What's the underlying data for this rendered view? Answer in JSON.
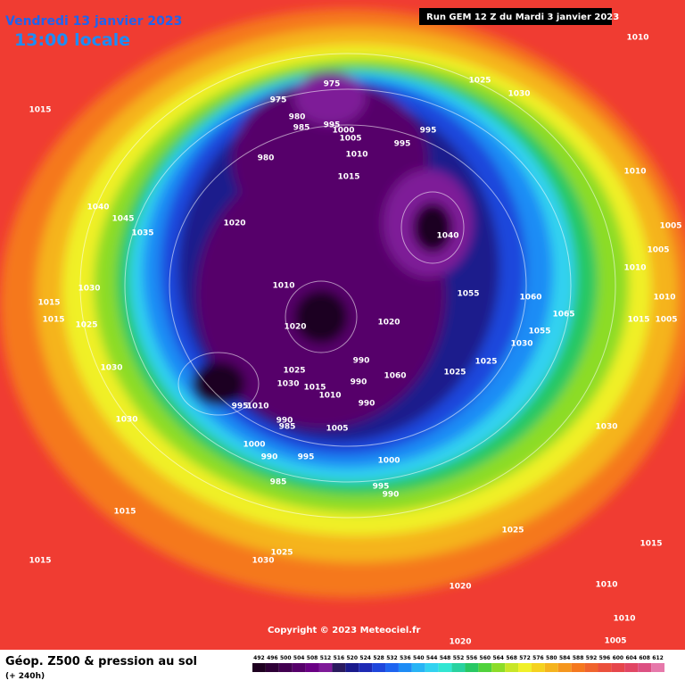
{
  "header": {
    "date": "Vendredi 13 janvier 2023",
    "time": "13:00 locale",
    "run": "Run GEM 12 Z du Mardi 3 janvier 2023"
  },
  "copyright": "Copyright © 2023 Meteociel.fr",
  "footer": {
    "title": "Géop. Z500 & pression au sol",
    "lead": "(+ 240h)"
  },
  "legend": {
    "values": [
      492,
      496,
      500,
      504,
      508,
      512,
      516,
      520,
      524,
      528,
      532,
      536,
      540,
      544,
      548,
      552,
      556,
      560,
      564,
      568,
      572,
      576,
      580,
      584,
      588,
      592,
      596,
      600,
      604,
      608,
      612
    ],
    "colors": [
      "#1e0020",
      "#2e0036",
      "#420050",
      "#56006a",
      "#6a0084",
      "#7e1a98",
      "#2a1a5e",
      "#1a1a8c",
      "#1e2ab4",
      "#1e46dc",
      "#1e64f0",
      "#1e8cf5",
      "#28b4f5",
      "#32d2f0",
      "#32e6d2",
      "#28d2a0",
      "#28c864",
      "#50d23c",
      "#8cdc28",
      "#c8e628",
      "#f0f028",
      "#f5d21e",
      "#f5b41e",
      "#f5961e",
      "#f5781e",
      "#f0642d",
      "#eb503c",
      "#e6464b",
      "#e14664",
      "#dc5082",
      "#e678aa"
    ]
  },
  "isobar_labels": [
    975,
    975,
    980,
    985,
    995,
    1000,
    1005,
    980,
    1010,
    995,
    995,
    1015,
    1025,
    1030,
    1010,
    1015,
    1040,
    1045,
    1035,
    1020,
    1040,
    1010,
    1030,
    1015,
    1015,
    1025,
    1030,
    1020,
    1020,
    1055,
    1060,
    1065,
    1055,
    1030,
    1025,
    1025,
    990,
    990,
    1060,
    990,
    1030,
    1025,
    1015,
    1010,
    1010,
    995,
    990,
    985,
    1005,
    1000,
    990,
    995,
    1000,
    995,
    990,
    985,
    1030,
    1010,
    1005,
    1005,
    1010,
    1010,
    1015,
    1005,
    1030,
    1015,
    1015,
    1025,
    1030,
    1025,
    1020,
    1015,
    1010,
    1010,
    1005,
    1020
  ]
}
